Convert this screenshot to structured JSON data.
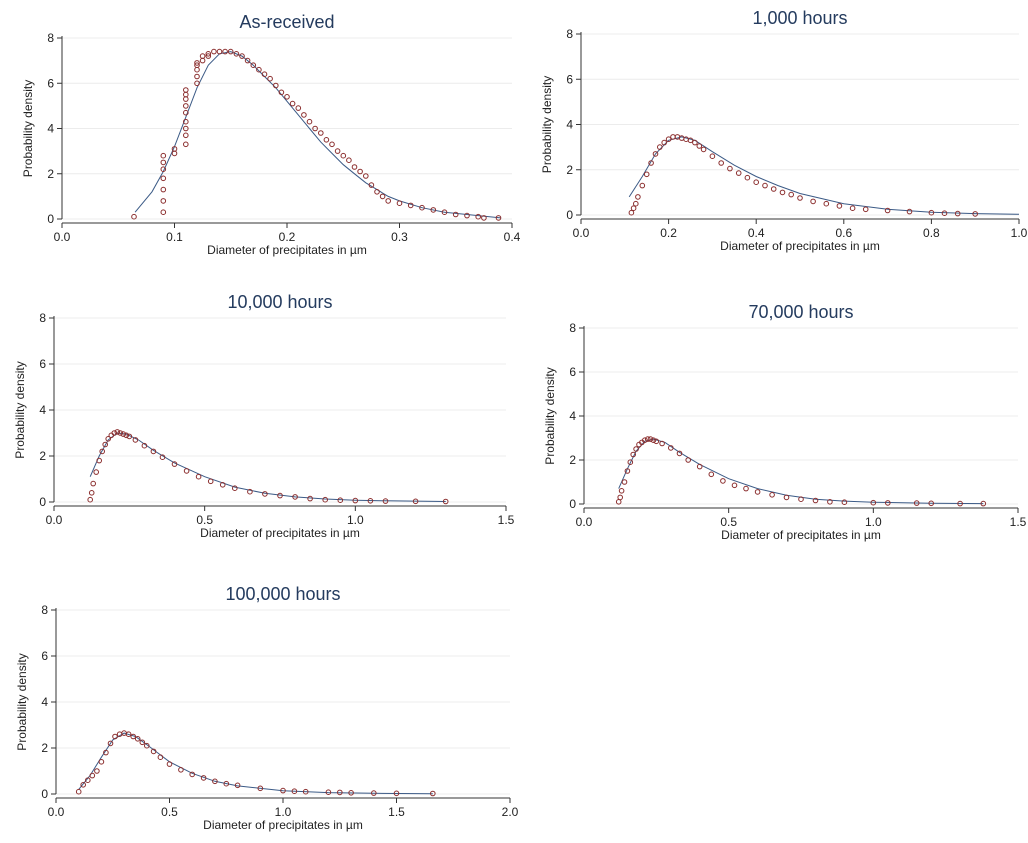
{
  "colors": {
    "points": "#8b2e2e",
    "fit_line": "#3b5a86",
    "title": "#243b5e"
  },
  "chart_data": [
    {
      "type": "scatter",
      "title": "As-received",
      "xlabel": "Diameter of precipitates in µm",
      "ylabel": "Probability density",
      "xlim": [
        0,
        0.4
      ],
      "ylim": [
        0,
        8
      ],
      "xticks": [
        "0.0",
        "0.1",
        "0.2",
        "0.3",
        "0.4"
      ],
      "xtick_values": [
        0,
        0.1,
        0.2,
        0.3,
        0.4
      ],
      "yticks": [
        "0",
        "2",
        "4",
        "6",
        "8"
      ],
      "ytick_values": [
        0,
        2,
        4,
        6,
        8
      ],
      "grid": true,
      "series": [
        {
          "kind": "points",
          "x": [
            0.064,
            0.09,
            0.09,
            0.09,
            0.09,
            0.09,
            0.09,
            0.09,
            0.1,
            0.1,
            0.11,
            0.11,
            0.11,
            0.11,
            0.11,
            0.11,
            0.11,
            0.11,
            0.11,
            0.12,
            0.12,
            0.12,
            0.12,
            0.12,
            0.125,
            0.125,
            0.13,
            0.13,
            0.135,
            0.14,
            0.145,
            0.15,
            0.155,
            0.16,
            0.165,
            0.17,
            0.175,
            0.18,
            0.185,
            0.19,
            0.195,
            0.2,
            0.205,
            0.21,
            0.215,
            0.22,
            0.225,
            0.23,
            0.235,
            0.24,
            0.245,
            0.25,
            0.255,
            0.26,
            0.265,
            0.27,
            0.275,
            0.28,
            0.285,
            0.29,
            0.3,
            0.31,
            0.32,
            0.33,
            0.34,
            0.35,
            0.36,
            0.37,
            0.375,
            0.388
          ],
          "y": [
            0.1,
            0.3,
            0.8,
            1.3,
            1.8,
            2.2,
            2.5,
            2.8,
            2.9,
            3.1,
            3.3,
            3.7,
            4.0,
            4.3,
            4.7,
            5.0,
            5.3,
            5.5,
            5.7,
            6.0,
            6.3,
            6.6,
            6.8,
            6.9,
            7.0,
            7.2,
            7.2,
            7.3,
            7.4,
            7.4,
            7.4,
            7.4,
            7.3,
            7.2,
            7.0,
            6.8,
            6.6,
            6.4,
            6.2,
            5.9,
            5.6,
            5.4,
            5.1,
            4.9,
            4.6,
            4.3,
            4.0,
            3.8,
            3.5,
            3.3,
            3.0,
            2.8,
            2.6,
            2.3,
            2.1,
            1.9,
            1.5,
            1.2,
            1.0,
            0.8,
            0.7,
            0.6,
            0.5,
            0.4,
            0.3,
            0.2,
            0.15,
            0.1,
            0.05,
            0.05
          ]
        },
        {
          "kind": "line",
          "x": [
            0.065,
            0.08,
            0.09,
            0.1,
            0.11,
            0.12,
            0.13,
            0.14,
            0.15,
            0.16,
            0.17,
            0.18,
            0.19,
            0.2,
            0.21,
            0.22,
            0.23,
            0.24,
            0.25,
            0.26,
            0.27,
            0.28,
            0.29,
            0.3,
            0.32,
            0.34,
            0.36,
            0.38,
            0.39
          ],
          "y": [
            0.3,
            1.2,
            2.1,
            3.2,
            4.5,
            5.8,
            6.8,
            7.3,
            7.4,
            7.2,
            6.8,
            6.3,
            5.8,
            5.2,
            4.6,
            4.0,
            3.4,
            2.9,
            2.4,
            2.0,
            1.6,
            1.3,
            1.0,
            0.8,
            0.5,
            0.3,
            0.2,
            0.1,
            0.05
          ]
        }
      ]
    },
    {
      "type": "scatter",
      "title": "1,000 hours",
      "xlabel": "Diameter of precipitates in µm",
      "ylabel": "Probability density",
      "xlim": [
        0,
        1.0
      ],
      "ylim": [
        0,
        8
      ],
      "xticks": [
        "0.0",
        "0.2",
        "0.4",
        "0.6",
        "0.8",
        "1.0"
      ],
      "xtick_values": [
        0,
        0.2,
        0.4,
        0.6,
        0.8,
        1.0
      ],
      "yticks": [
        "0",
        "2",
        "4",
        "6",
        "8"
      ],
      "ytick_values": [
        0,
        2,
        4,
        6,
        8
      ],
      "grid": true,
      "series": [
        {
          "kind": "points",
          "x": [
            0.115,
            0.12,
            0.125,
            0.13,
            0.14,
            0.15,
            0.16,
            0.17,
            0.18,
            0.19,
            0.2,
            0.21,
            0.22,
            0.23,
            0.24,
            0.25,
            0.26,
            0.27,
            0.28,
            0.3,
            0.32,
            0.34,
            0.36,
            0.38,
            0.4,
            0.42,
            0.44,
            0.46,
            0.48,
            0.5,
            0.53,
            0.56,
            0.59,
            0.62,
            0.65,
            0.7,
            0.75,
            0.8,
            0.83,
            0.86,
            0.9
          ],
          "y": [
            0.1,
            0.3,
            0.5,
            0.8,
            1.3,
            1.8,
            2.3,
            2.7,
            3.0,
            3.2,
            3.35,
            3.45,
            3.45,
            3.4,
            3.35,
            3.3,
            3.2,
            3.05,
            2.9,
            2.6,
            2.3,
            2.05,
            1.85,
            1.65,
            1.45,
            1.3,
            1.15,
            1.0,
            0.9,
            0.75,
            0.6,
            0.5,
            0.4,
            0.3,
            0.25,
            0.2,
            0.15,
            0.1,
            0.08,
            0.06,
            0.05
          ]
        },
        {
          "kind": "line",
          "x": [
            0.11,
            0.14,
            0.17,
            0.2,
            0.23,
            0.26,
            0.3,
            0.35,
            0.4,
            0.45,
            0.5,
            0.6,
            0.7,
            0.8,
            0.9,
            1.0
          ],
          "y": [
            0.8,
            1.7,
            2.7,
            3.3,
            3.45,
            3.3,
            2.8,
            2.2,
            1.7,
            1.3,
            0.95,
            0.5,
            0.25,
            0.12,
            0.06,
            0.03
          ]
        }
      ]
    },
    {
      "type": "scatter",
      "title": "10,000 hours",
      "xlabel": "Diameter of precipitates in µm",
      "ylabel": "Probability density",
      "xlim": [
        0,
        1.5
      ],
      "ylim": [
        0,
        8
      ],
      "xticks": [
        "0.0",
        "0.5",
        "1.0",
        "1.5"
      ],
      "xtick_values": [
        0,
        0.5,
        1.0,
        1.5
      ],
      "yticks": [
        "0",
        "2",
        "4",
        "6",
        "8"
      ],
      "ytick_values": [
        0,
        2,
        4,
        6,
        8
      ],
      "grid": true,
      "series": [
        {
          "kind": "points",
          "x": [
            0.12,
            0.125,
            0.13,
            0.14,
            0.15,
            0.16,
            0.17,
            0.18,
            0.19,
            0.2,
            0.21,
            0.22,
            0.23,
            0.24,
            0.25,
            0.27,
            0.3,
            0.33,
            0.36,
            0.4,
            0.44,
            0.48,
            0.52,
            0.56,
            0.6,
            0.65,
            0.7,
            0.75,
            0.8,
            0.85,
            0.9,
            0.95,
            1.0,
            1.05,
            1.1,
            1.2,
            1.3
          ],
          "y": [
            0.1,
            0.4,
            0.8,
            1.3,
            1.8,
            2.2,
            2.5,
            2.75,
            2.9,
            3.0,
            3.05,
            3.0,
            2.95,
            2.9,
            2.85,
            2.7,
            2.45,
            2.2,
            1.95,
            1.65,
            1.35,
            1.1,
            0.9,
            0.75,
            0.6,
            0.45,
            0.35,
            0.28,
            0.22,
            0.15,
            0.1,
            0.08,
            0.06,
            0.05,
            0.04,
            0.03,
            0.02
          ]
        },
        {
          "kind": "line",
          "x": [
            0.12,
            0.15,
            0.18,
            0.21,
            0.24,
            0.28,
            0.33,
            0.4,
            0.5,
            0.6,
            0.7,
            0.8,
            0.9,
            1.0,
            1.1,
            1.3
          ],
          "y": [
            1.1,
            2.0,
            2.7,
            3.0,
            2.95,
            2.7,
            2.25,
            1.7,
            1.1,
            0.65,
            0.38,
            0.22,
            0.13,
            0.08,
            0.05,
            0.02
          ]
        }
      ]
    },
    {
      "type": "scatter",
      "title": "70,000 hours",
      "xlabel": "Diameter of precipitates in µm",
      "ylabel": "Probability density",
      "xlim": [
        0,
        1.5
      ],
      "ylim": [
        0,
        8
      ],
      "xticks": [
        "0.0",
        "0.5",
        "1.0",
        "1.5"
      ],
      "xtick_values": [
        0,
        0.5,
        1.0,
        1.5
      ],
      "yticks": [
        "0",
        "2",
        "4",
        "6",
        "8"
      ],
      "ytick_values": [
        0,
        2,
        4,
        6,
        8
      ],
      "grid": true,
      "series": [
        {
          "kind": "points",
          "x": [
            0.12,
            0.125,
            0.13,
            0.14,
            0.15,
            0.16,
            0.17,
            0.18,
            0.19,
            0.2,
            0.21,
            0.22,
            0.23,
            0.24,
            0.25,
            0.27,
            0.3,
            0.33,
            0.36,
            0.4,
            0.44,
            0.48,
            0.52,
            0.56,
            0.6,
            0.65,
            0.7,
            0.75,
            0.8,
            0.85,
            0.9,
            1.0,
            1.05,
            1.15,
            1.2,
            1.3,
            1.38
          ],
          "y": [
            0.1,
            0.3,
            0.6,
            1.0,
            1.5,
            1.9,
            2.25,
            2.5,
            2.7,
            2.8,
            2.9,
            2.95,
            2.95,
            2.9,
            2.85,
            2.75,
            2.55,
            2.3,
            2.0,
            1.7,
            1.35,
            1.05,
            0.85,
            0.7,
            0.55,
            0.42,
            0.3,
            0.22,
            0.16,
            0.1,
            0.08,
            0.06,
            0.05,
            0.04,
            0.03,
            0.02,
            0.02
          ]
        },
        {
          "kind": "line",
          "x": [
            0.12,
            0.15,
            0.18,
            0.21,
            0.24,
            0.28,
            0.33,
            0.4,
            0.5,
            0.6,
            0.7,
            0.8,
            0.9,
            1.0,
            1.2,
            1.38
          ],
          "y": [
            0.7,
            1.6,
            2.4,
            2.85,
            2.95,
            2.8,
            2.35,
            1.8,
            1.15,
            0.7,
            0.4,
            0.22,
            0.13,
            0.08,
            0.03,
            0.02
          ]
        }
      ]
    },
    {
      "type": "scatter",
      "title": "100,000 hours",
      "xlabel": "Diameter of precipitates in µm",
      "ylabel": "Probability density",
      "xlim": [
        0,
        2.0
      ],
      "ylim": [
        0,
        8
      ],
      "xticks": [
        "0.0",
        "0.5",
        "1.0",
        "1.5",
        "2.0"
      ],
      "xtick_values": [
        0,
        0.5,
        1.0,
        1.5,
        2.0
      ],
      "yticks": [
        "0",
        "2",
        "4",
        "6",
        "8"
      ],
      "ytick_values": [
        0,
        2,
        4,
        6,
        8
      ],
      "grid": true,
      "series": [
        {
          "kind": "points",
          "x": [
            0.1,
            0.12,
            0.14,
            0.16,
            0.18,
            0.2,
            0.22,
            0.24,
            0.26,
            0.28,
            0.3,
            0.32,
            0.34,
            0.36,
            0.38,
            0.4,
            0.43,
            0.46,
            0.5,
            0.55,
            0.6,
            0.65,
            0.7,
            0.75,
            0.8,
            0.9,
            1.0,
            1.05,
            1.1,
            1.2,
            1.25,
            1.3,
            1.4,
            1.5,
            1.66
          ],
          "y": [
            0.1,
            0.4,
            0.6,
            0.8,
            1.0,
            1.4,
            1.8,
            2.2,
            2.5,
            2.6,
            2.65,
            2.6,
            2.5,
            2.4,
            2.25,
            2.1,
            1.85,
            1.6,
            1.3,
            1.05,
            0.85,
            0.7,
            0.55,
            0.45,
            0.38,
            0.25,
            0.15,
            0.12,
            0.1,
            0.08,
            0.07,
            0.05,
            0.04,
            0.03,
            0.02
          ]
        },
        {
          "kind": "line",
          "x": [
            0.1,
            0.15,
            0.2,
            0.25,
            0.3,
            0.35,
            0.4,
            0.5,
            0.6,
            0.7,
            0.8,
            1.0,
            1.2,
            1.4,
            1.66
          ],
          "y": [
            0.2,
            0.8,
            1.6,
            2.35,
            2.65,
            2.5,
            2.15,
            1.4,
            0.9,
            0.55,
            0.35,
            0.14,
            0.06,
            0.03,
            0.01
          ]
        }
      ]
    }
  ]
}
